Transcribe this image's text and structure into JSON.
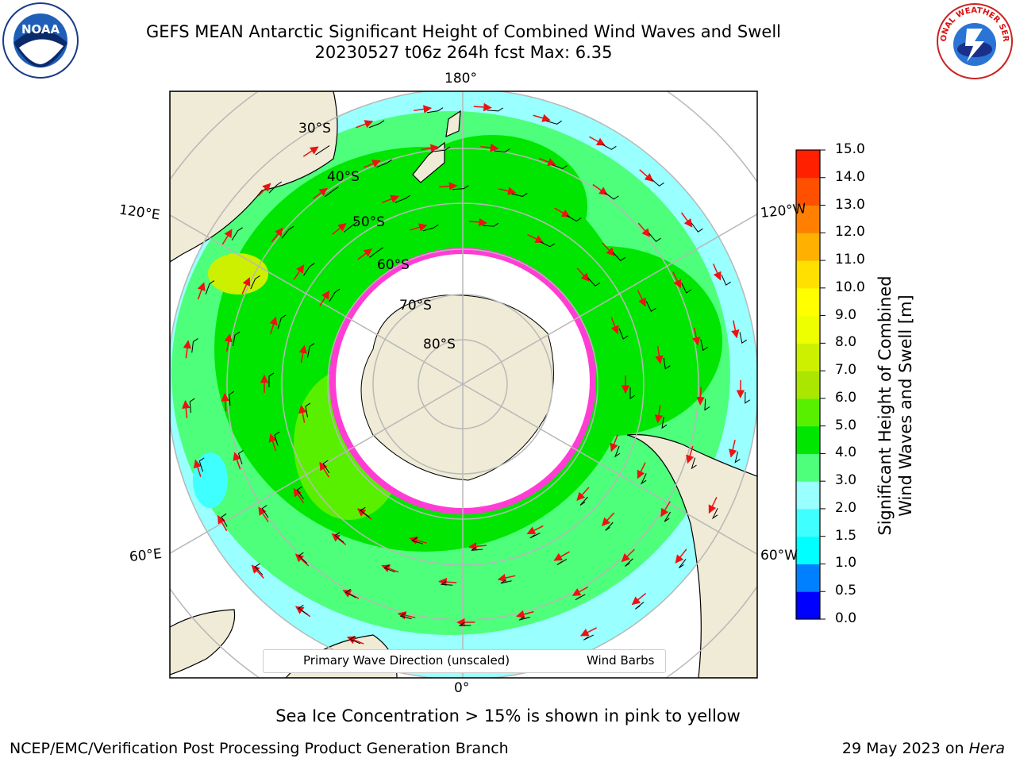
{
  "title": {
    "line1": "GEFS MEAN Antarctic Significant Height of Combined Wind Waves and Swell",
    "line2": "20230527 t06z 264h fcst   Max: 6.35"
  },
  "map": {
    "lon_labels": [
      "180°",
      "120°E",
      "120°W",
      "60°E",
      "60°W",
      "0°"
    ],
    "lat_labels": [
      "30°S",
      "40°S",
      "50°S",
      "60°S",
      "70°S",
      "80°S"
    ]
  },
  "legend": {
    "primary": "Primary Wave Direction (unscaled)",
    "barbs": "Wind Barbs"
  },
  "colorbar": {
    "label_line1": "Significant Height of Combined",
    "label_line2": "Wind Waves and Swell [m]",
    "ticks": [
      "15.0",
      "14.0",
      "13.0",
      "12.0",
      "11.0",
      "10.0",
      "9.0",
      "8.0",
      "7.0",
      "6.0",
      "5.0",
      "4.0",
      "3.0",
      "2.0",
      "1.5",
      "1.0",
      "0.5",
      "0.0"
    ],
    "colors": [
      "#0000ff",
      "#0080ff",
      "#00ffff",
      "#40ffff",
      "#99ffff",
      "#4dff7a",
      "#00e600",
      "#59f000",
      "#aae600",
      "#ccf000",
      "#eeff00",
      "#ffff00",
      "#ffe000",
      "#ffb000",
      "#ff8000",
      "#ff5000",
      "#ff2000"
    ]
  },
  "colors": {
    "land": "#efebd6",
    "ice_edge": "#ff3dd4",
    "arrow": "#ee1111"
  },
  "note": "Sea Ice Concentration > 15% is shown in pink to yellow",
  "footer": {
    "left": "NCEP/EMC/Verification Post Processing Product Generation Branch",
    "date": "29 May 2023 on ",
    "host": "Hera"
  },
  "logos": {
    "noaa": "NOAA",
    "nws": "NATIONAL WEATHER SERVICE"
  }
}
